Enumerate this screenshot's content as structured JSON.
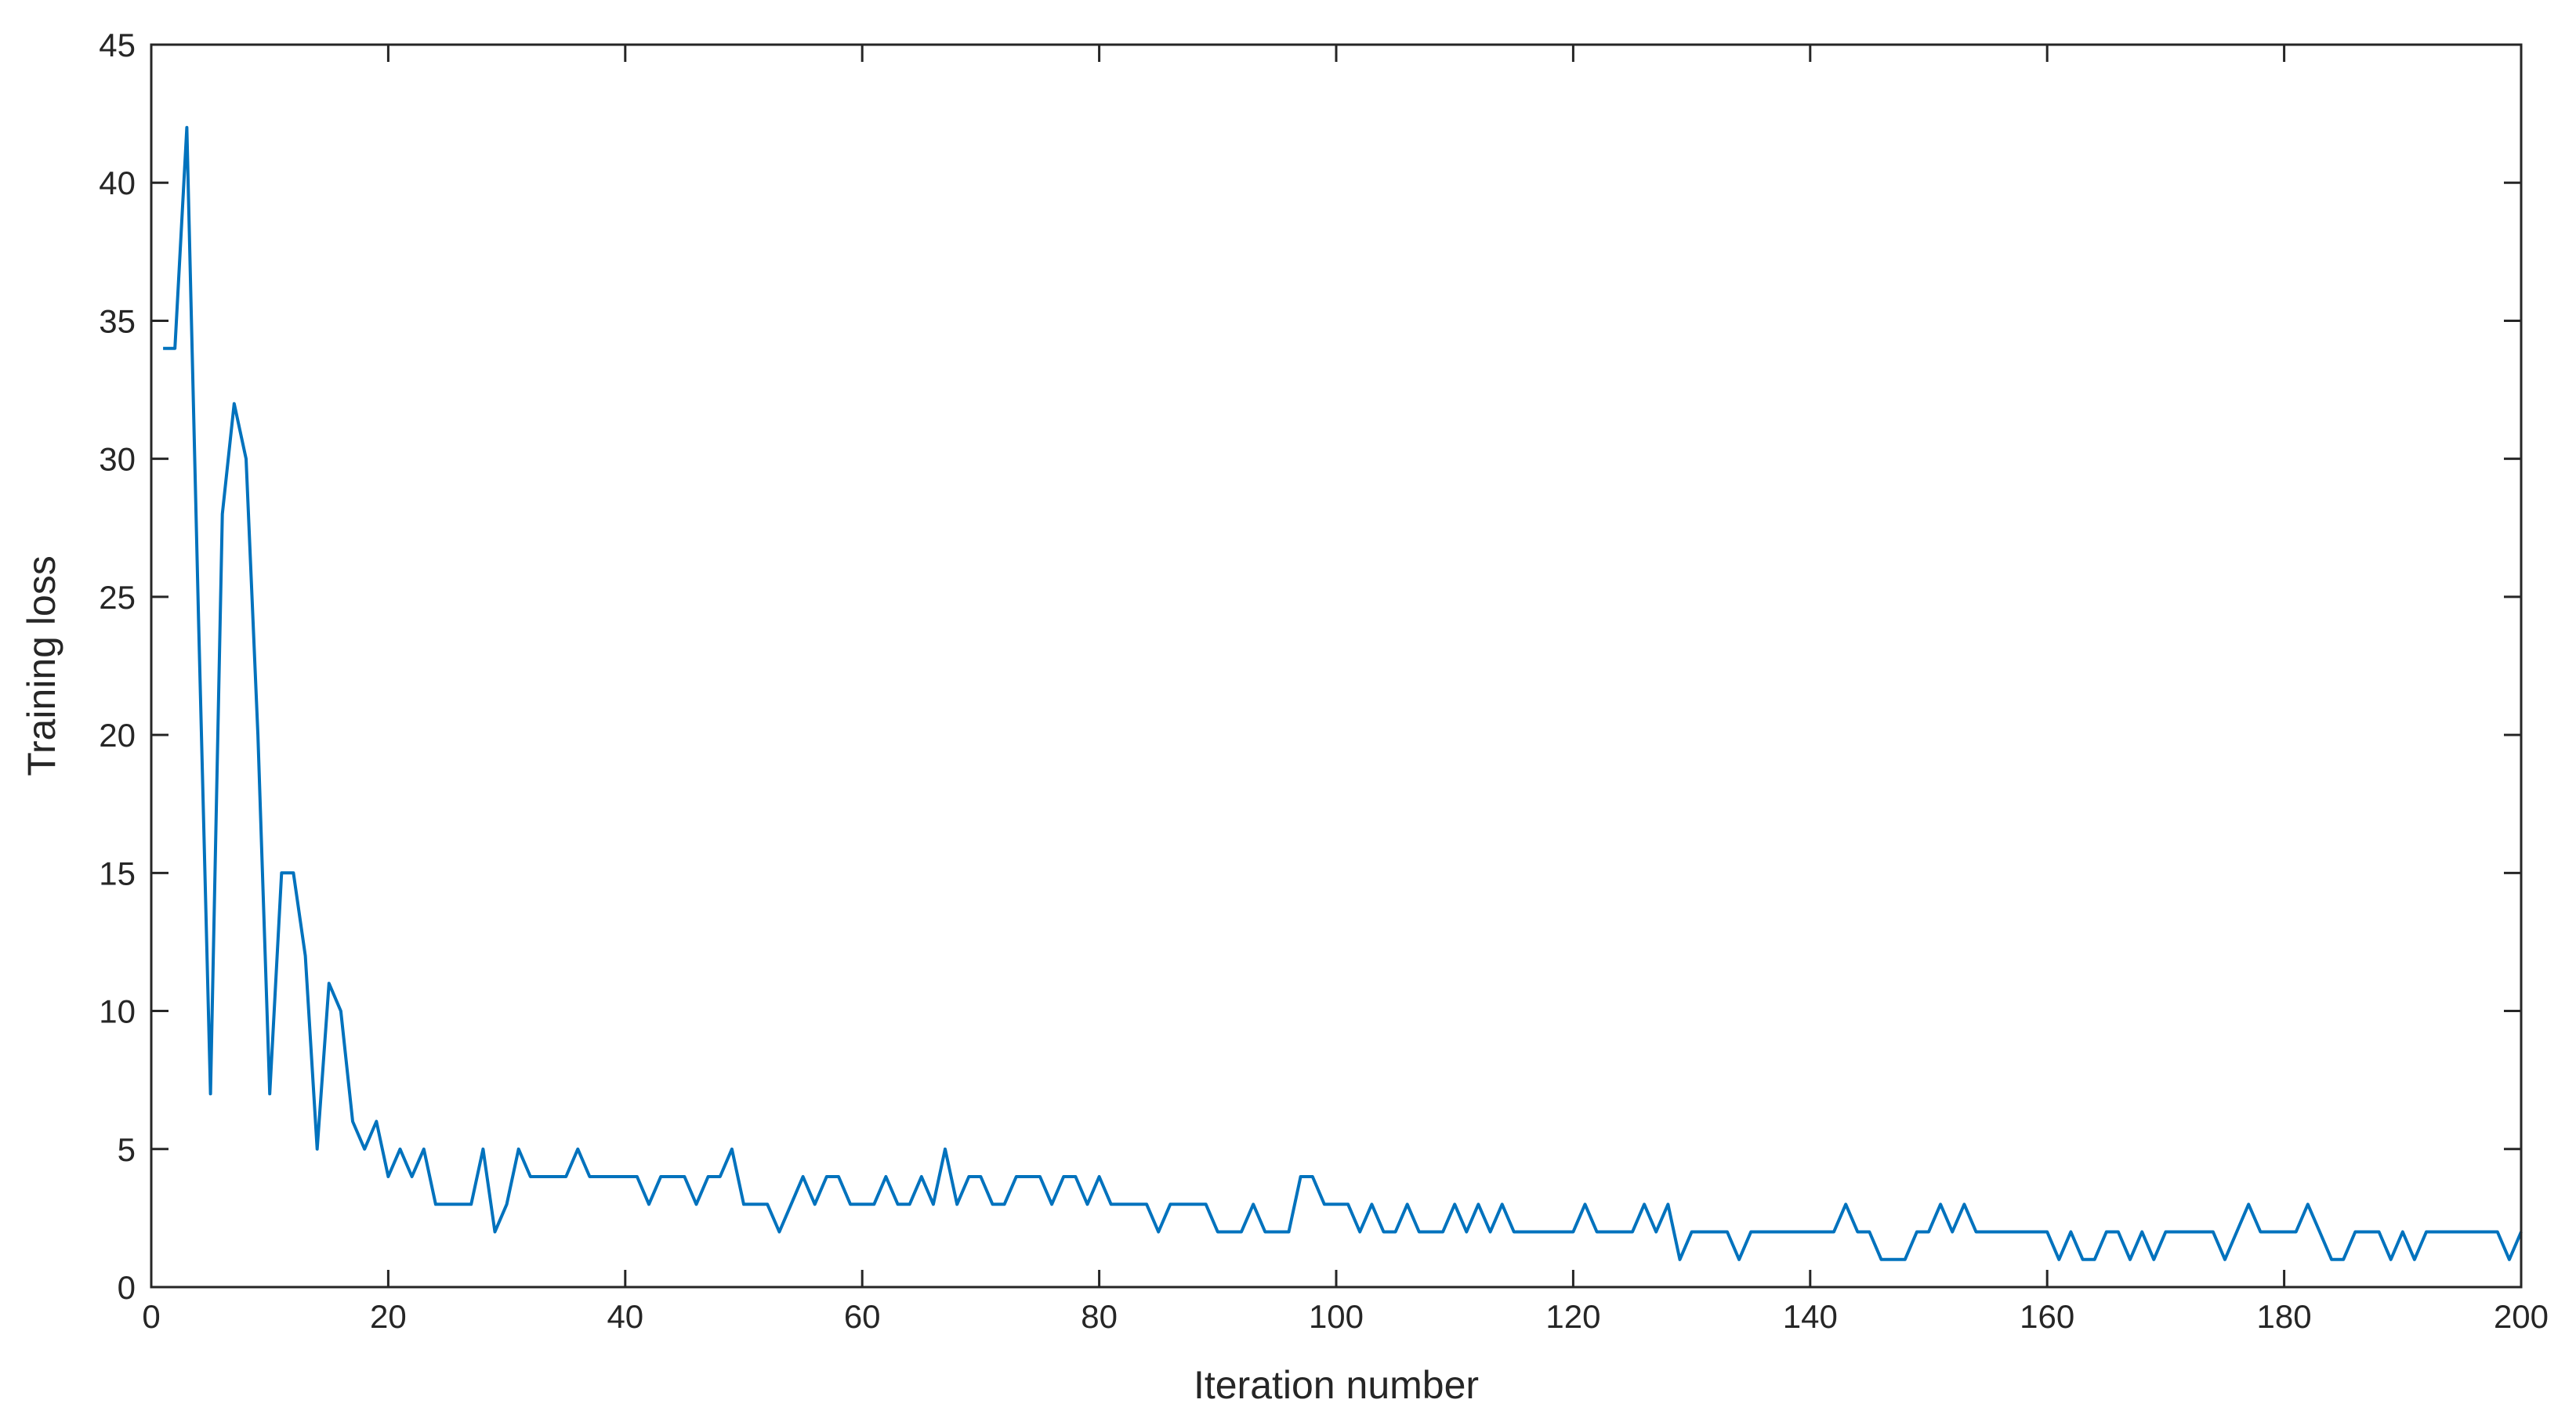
{
  "chart_data": {
    "type": "line",
    "title": "",
    "xlabel": "Iteration number",
    "ylabel": "Training loss",
    "xlim": [
      0,
      200
    ],
    "ylim": [
      0,
      45
    ],
    "x_ticks": [
      0,
      20,
      40,
      60,
      80,
      100,
      120,
      140,
      160,
      180,
      200
    ],
    "y_ticks": [
      0,
      5,
      10,
      15,
      20,
      25,
      30,
      35,
      40,
      45
    ],
    "grid": false,
    "box": true,
    "line_color": "#0072BD",
    "axis_color": "#262626",
    "series": [
      {
        "x": [
          1,
          2,
          3,
          4,
          5,
          6,
          7,
          8,
          9,
          10,
          11,
          12,
          13,
          14,
          15,
          16,
          17,
          18,
          19,
          20,
          21,
          22,
          23,
          24,
          25,
          26,
          27,
          28,
          29,
          30,
          31,
          32,
          33,
          34,
          35,
          36,
          37,
          38,
          39,
          40,
          41,
          42,
          43,
          44,
          45,
          46,
          47,
          48,
          49,
          50,
          51,
          52,
          53,
          54,
          55,
          56,
          57,
          58,
          59,
          60,
          61,
          62,
          63,
          64,
          65,
          66,
          67,
          68,
          69,
          70,
          71,
          72,
          73,
          74,
          75,
          76,
          77,
          78,
          79,
          80,
          81,
          82,
          83,
          84,
          85,
          86,
          87,
          88,
          89,
          90,
          91,
          92,
          93,
          94,
          95,
          96,
          97,
          98,
          99,
          100,
          101,
          102,
          103,
          104,
          105,
          106,
          107,
          108,
          109,
          110,
          111,
          112,
          113,
          114,
          115,
          116,
          117,
          118,
          119,
          120,
          121,
          122,
          123,
          124,
          125,
          126,
          127,
          128,
          129,
          130,
          131,
          132,
          133,
          134,
          135,
          136,
          137,
          138,
          139,
          140,
          141,
          142,
          143,
          144,
          145,
          146,
          147,
          148,
          149,
          150,
          151,
          152,
          153,
          154,
          155,
          156,
          157,
          158,
          159,
          160,
          161,
          162,
          163,
          164,
          165,
          166,
          167,
          168,
          169,
          170,
          171,
          172,
          173,
          174,
          175,
          176,
          177,
          178,
          179,
          180,
          181,
          182,
          183,
          184,
          185,
          186,
          187,
          188,
          189,
          190,
          191,
          192,
          193,
          194,
          195,
          196,
          197,
          198,
          199,
          200
        ],
        "y": [
          34,
          34,
          42,
          24,
          7,
          28,
          32,
          30,
          20,
          7,
          15,
          15,
          12,
          5,
          11,
          10,
          6,
          5,
          6,
          4,
          5,
          4,
          5,
          3,
          3,
          3,
          3,
          5,
          2,
          3,
          5,
          4,
          4,
          4,
          4,
          5,
          4,
          4,
          4,
          4,
          4,
          3,
          4,
          4,
          4,
          3,
          4,
          4,
          5,
          3,
          3,
          3,
          2,
          3,
          4,
          3,
          4,
          4,
          3,
          3,
          3,
          4,
          3,
          3,
          4,
          3,
          5,
          3,
          4,
          4,
          3,
          3,
          4,
          4,
          4,
          3,
          4,
          4,
          3,
          4,
          3,
          3,
          3,
          3,
          2,
          3,
          3,
          3,
          3,
          2,
          2,
          2,
          3,
          2,
          2,
          2,
          4,
          4,
          3,
          3,
          3,
          2,
          3,
          2,
          2,
          3,
          2,
          2,
          2,
          3,
          2,
          3,
          2,
          3,
          2,
          2,
          2,
          2,
          2,
          2,
          3,
          2,
          2,
          2,
          2,
          3,
          2,
          3,
          1,
          2,
          2,
          2,
          2,
          1,
          2,
          2,
          2,
          2,
          2,
          2,
          2,
          2,
          3,
          2,
          2,
          1,
          1,
          1,
          2,
          2,
          3,
          2,
          3,
          2,
          2,
          2,
          2,
          2,
          2,
          2,
          1,
          2,
          1,
          1,
          2,
          2,
          1,
          2,
          1,
          2,
          2,
          2,
          2,
          2,
          1,
          2,
          3,
          2,
          2,
          2,
          2,
          3,
          2,
          1,
          1,
          2,
          2,
          2,
          1,
          2,
          1,
          2,
          2,
          2,
          2,
          2,
          2,
          2,
          1,
          2
        ]
      }
    ]
  }
}
